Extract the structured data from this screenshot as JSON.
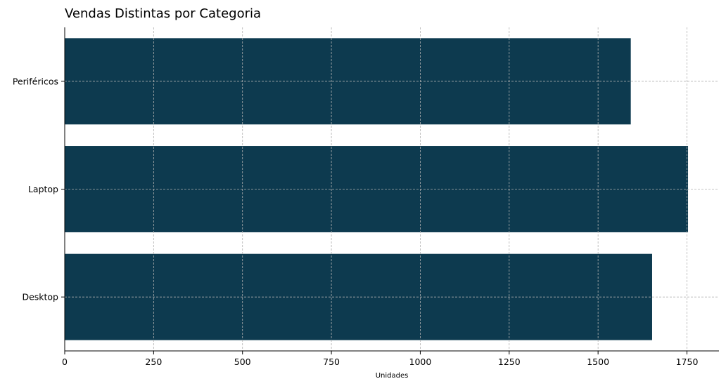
{
  "chart_data": {
    "type": "bar",
    "orientation": "horizontal",
    "title": "Vendas Distintas por Categoria",
    "xlabel": "Unidades",
    "ylabel": "",
    "categories": [
      "Desktop",
      "Laptop",
      "Periféricos"
    ],
    "values": [
      1652,
      1753,
      1592
    ],
    "xlim": [
      0,
      1840
    ],
    "xticks": [
      0,
      250,
      500,
      750,
      1000,
      1250,
      1500,
      1750
    ],
    "grid": true,
    "bar_color": "#0d3a4f",
    "grid_color": "#b0b0b0"
  }
}
